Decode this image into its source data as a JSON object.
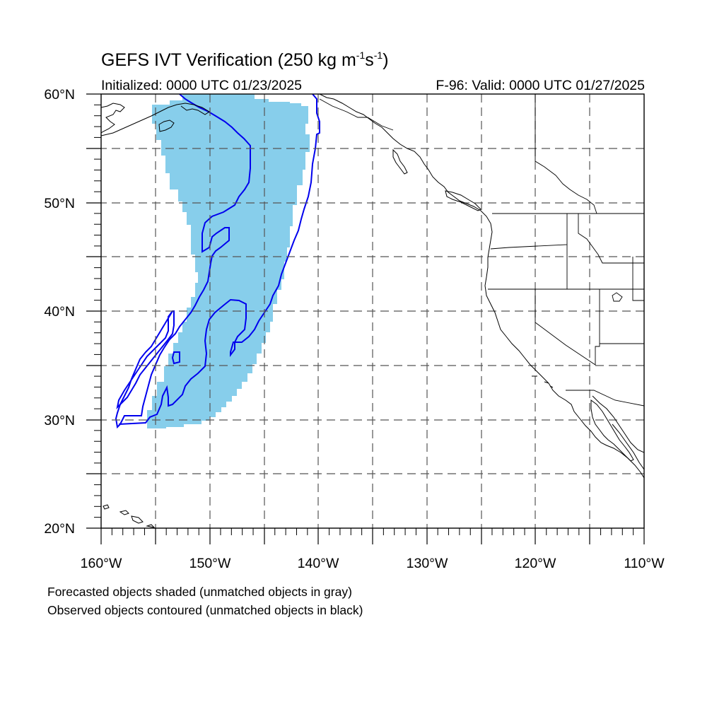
{
  "title": {
    "prefix": "GEFS IVT Verification (250 kg m",
    "exp1": "-1",
    "mid": "s",
    "exp2": "-1",
    "suffix": ")"
  },
  "initialized": "Initialized: 0000 UTC 01/23/2025",
  "valid": "F-96: Valid: 0000 UTC 01/27/2025",
  "map": {
    "extent": {
      "lon_min": -160,
      "lon_max": -110,
      "lat_min": 20,
      "lat_max": 60
    },
    "grid_spacing_deg": 5,
    "lat_labels": [
      "60°N",
      "50°N",
      "40°N",
      "30°N",
      "20°N"
    ],
    "lon_labels": [
      "160°W",
      "150°W",
      "140°W",
      "130°W",
      "120°W",
      "110°W"
    ],
    "forecast_fill_color": "#87ceeb",
    "observed_contour_color": "#0000ee",
    "coastline_color": "#000000"
  },
  "notes": [
    "Forecasted objects shaded (unmatched objects in gray)",
    "Observed objects contoured (unmatched objects in black)"
  ]
}
